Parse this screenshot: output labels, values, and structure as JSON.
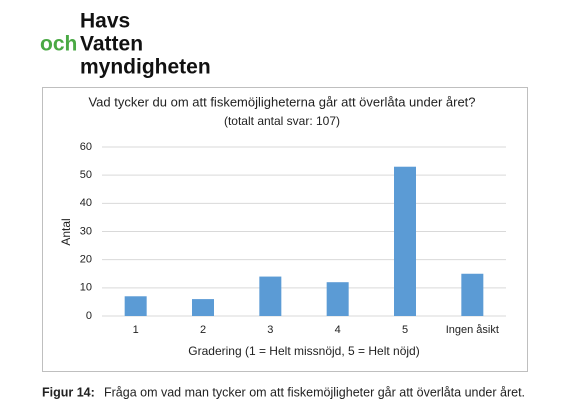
{
  "logo": {
    "line1": "Havs",
    "prefix": "och",
    "line2": "Vatten",
    "line3": "myndigheten"
  },
  "chart_data": {
    "type": "bar",
    "title": "Vad tycker du om att fiskemöjligheterna går att överlåta under året?",
    "subtitle": "(totalt antal svar: 107)",
    "x_label": "Gradering (1 = Helt missnöjd, 5 = Helt nöjd)",
    "y_label": "Antal",
    "categories": [
      "1",
      "2",
      "3",
      "4",
      "5",
      "Ingen åsikt"
    ],
    "values": [
      7,
      6,
      14,
      12,
      53,
      15
    ],
    "color": "#5b9bd5",
    "ylim": [
      0,
      60
    ],
    "yticks": [
      0,
      10,
      20,
      30,
      40,
      50,
      60
    ],
    "grid": true
  },
  "caption": {
    "label": "Figur 14:",
    "text": "Fråga om vad man tycker om att fiskemöjligheter går att överlåta under året."
  }
}
